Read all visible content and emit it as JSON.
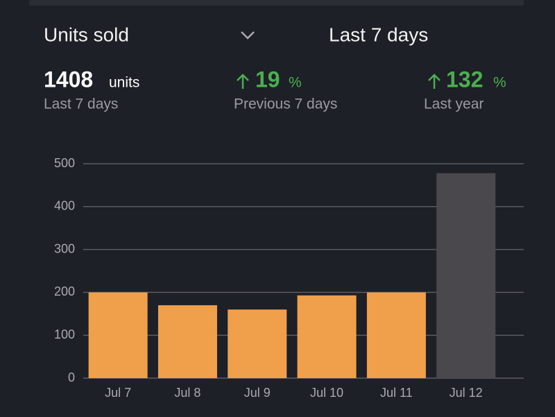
{
  "header": {
    "metric": "Units sold",
    "period": "Last 7 days"
  },
  "stats": [
    {
      "value": 1408,
      "unit": "units",
      "label": "Last 7 days"
    },
    {
      "value": 19,
      "unit": "%",
      "label": "Previous 7 days"
    },
    {
      "value": 132,
      "unit": "%",
      "label": "Last year"
    }
  ],
  "chart_data": {
    "type": "bar",
    "categories": [
      "Jul 7",
      "Jul 8",
      "Jul 9",
      "Jul 10",
      "Jul 11",
      "Jul 12"
    ],
    "values": [
      200,
      170,
      160,
      193,
      200,
      478
    ],
    "colors": [
      "#f0a04b",
      "#f0a04b",
      "#f0a04b",
      "#f0a04b",
      "#f0a04b",
      "#4a484c"
    ],
    "ylim": [
      0,
      500
    ],
    "yticks": [
      0,
      100,
      200,
      300,
      400,
      500
    ],
    "grid": true
  }
}
